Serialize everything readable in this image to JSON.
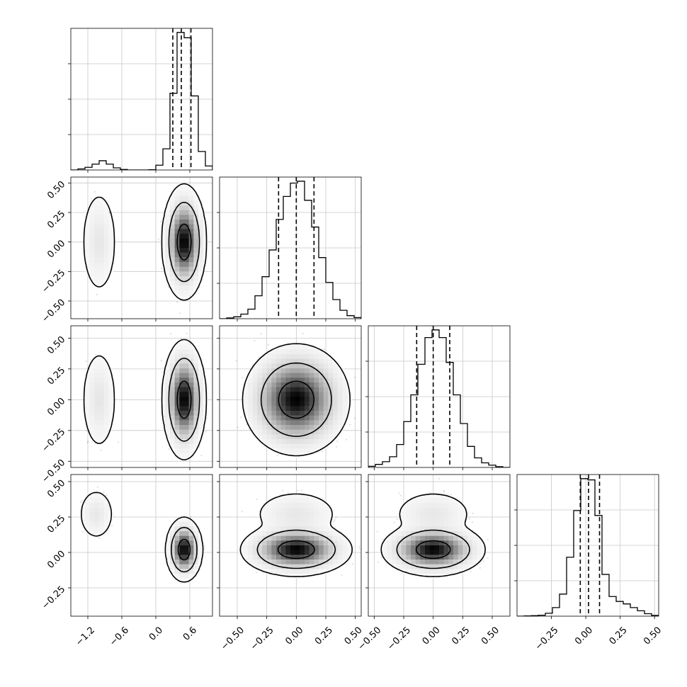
{
  "chart_data": {
    "type": "corner",
    "parameters": 4,
    "grid": true,
    "quantile_lines": "dashed",
    "panels": [
      {
        "kind": "histogram",
        "row": 0,
        "col": 0,
        "xlim": [
          -1.5,
          1.0
        ],
        "bin_edges": [
          -1.5,
          -1.375,
          -1.25,
          -1.125,
          -1.0,
          -0.875,
          -0.75,
          -0.625,
          -0.5,
          -0.375,
          -0.25,
          -0.125,
          0.0,
          0.125,
          0.25,
          0.375,
          0.5,
          0.625,
          0.75,
          0.875,
          1.0
        ],
        "counts": [
          0,
          4,
          10,
          22,
          35,
          22,
          8,
          2,
          0,
          0,
          0,
          1,
          18,
          80,
          290,
          520,
          500,
          280,
          70,
          15
        ],
        "quantiles": [
          0.3,
          0.45,
          0.62
        ]
      },
      {
        "kind": "histogram",
        "row": 1,
        "col": 1,
        "xlim": [
          -0.65,
          0.55
        ],
        "bin_edges": [
          -0.65,
          -0.59,
          -0.53,
          -0.47,
          -0.41,
          -0.35,
          -0.29,
          -0.23,
          -0.17,
          -0.11,
          -0.05,
          0.01,
          0.07,
          0.13,
          0.19,
          0.25,
          0.31,
          0.37,
          0.43,
          0.49,
          0.55
        ],
        "counts": [
          0,
          2,
          5,
          12,
          25,
          60,
          110,
          180,
          260,
          320,
          355,
          360,
          310,
          240,
          160,
          95,
          50,
          22,
          8,
          3
        ],
        "quantiles": [
          -0.15,
          0.0,
          0.15
        ]
      },
      {
        "kind": "histogram",
        "row": 2,
        "col": 2,
        "xlim": [
          -0.55,
          0.65
        ],
        "bin_edges": [
          -0.55,
          -0.49,
          -0.43,
          -0.37,
          -0.31,
          -0.25,
          -0.19,
          -0.13,
          -0.07,
          -0.01,
          0.05,
          0.11,
          0.17,
          0.23,
          0.29,
          0.35,
          0.41,
          0.47,
          0.53,
          0.59,
          0.65
        ],
        "counts": [
          3,
          8,
          15,
          28,
          60,
          120,
          190,
          270,
          340,
          360,
          340,
          275,
          190,
          115,
          55,
          25,
          12,
          6,
          2,
          0
        ],
        "quantiles": [
          -0.14,
          0.0,
          0.14
        ]
      },
      {
        "kind": "histogram",
        "row": 3,
        "col": 3,
        "xlim": [
          -0.5,
          0.53
        ],
        "bin_edges": [
          -0.5,
          -0.4485,
          -0.397,
          -0.3455,
          -0.294,
          -0.2425,
          -0.191,
          -0.1395,
          -0.088,
          -0.0365,
          0.015,
          0.0665,
          0.118,
          0.1695,
          0.221,
          0.2725,
          0.324,
          0.3755,
          0.427,
          0.4785,
          0.53
        ],
        "counts": [
          0,
          1,
          2,
          4,
          12,
          35,
          90,
          240,
          430,
          560,
          555,
          410,
          170,
          80,
          60,
          50,
          35,
          22,
          10,
          3
        ],
        "quantiles": [
          -0.04,
          0.02,
          0.1
        ]
      },
      {
        "kind": "density",
        "row": 1,
        "col": 0,
        "xlim": [
          -1.5,
          1.0
        ],
        "ylim": [
          -0.65,
          0.55
        ],
        "components": [
          {
            "weight": 0.06,
            "mean": [
              -1.0,
              0.0
            ],
            "sd": [
              0.12,
              0.17
            ]
          },
          {
            "weight": 0.94,
            "mean": [
              0.5,
              0.0
            ],
            "sd": [
              0.12,
              0.15
            ]
          }
        ],
        "samples": 1700,
        "contour_levels": [
          0.39,
          0.86,
          0.99
        ]
      },
      {
        "kind": "density",
        "row": 2,
        "col": 0,
        "xlim": [
          -1.5,
          1.0
        ],
        "ylim": [
          -0.55,
          0.6
        ],
        "components": [
          {
            "weight": 0.06,
            "mean": [
              -1.0,
              0.0
            ],
            "sd": [
              0.12,
              0.16
            ]
          },
          {
            "weight": 0.94,
            "mean": [
              0.5,
              0.0
            ],
            "sd": [
              0.12,
              0.15
            ]
          }
        ],
        "samples": 1700,
        "contour_levels": [
          0.39,
          0.86,
          0.99
        ]
      },
      {
        "kind": "density",
        "row": 3,
        "col": 0,
        "xlim": [
          -1.5,
          1.0
        ],
        "ylim": [
          -0.45,
          0.55
        ],
        "components": [
          {
            "weight": 0.06,
            "mean": [
              -1.05,
              0.27
            ],
            "sd": [
              0.12,
              0.07
            ]
          },
          {
            "weight": 0.94,
            "mean": [
              0.5,
              0.02
            ],
            "sd": [
              0.1,
              0.07
            ]
          }
        ],
        "samples": 1700,
        "contour_levels": [
          0.39,
          0.86,
          0.99
        ]
      },
      {
        "kind": "density",
        "row": 2,
        "col": 1,
        "xlim": [
          -0.65,
          0.55
        ],
        "ylim": [
          -0.55,
          0.6
        ],
        "components": [
          {
            "weight": 1.0,
            "mean": [
              0.0,
              0.0
            ],
            "sd": [
              0.15,
              0.15
            ]
          }
        ],
        "samples": 2600,
        "contour_levels": [
          0.39,
          0.86,
          0.99
        ]
      },
      {
        "kind": "density",
        "row": 3,
        "col": 1,
        "xlim": [
          -0.65,
          0.55
        ],
        "ylim": [
          -0.45,
          0.55
        ],
        "components": [
          {
            "weight": 0.94,
            "mean": [
              0.0,
              0.02
            ],
            "sd": [
              0.15,
              0.06
            ]
          },
          {
            "weight": 0.06,
            "mean": [
              0.0,
              0.27
            ],
            "sd": [
              0.15,
              0.07
            ]
          }
        ],
        "samples": 2600,
        "contour_levels": [
          0.39,
          0.86,
          0.99
        ]
      },
      {
        "kind": "density",
        "row": 3,
        "col": 2,
        "xlim": [
          -0.55,
          0.65
        ],
        "ylim": [
          -0.45,
          0.55
        ],
        "components": [
          {
            "weight": 0.94,
            "mean": [
              0.0,
              0.02
            ],
            "sd": [
              0.14,
              0.06
            ]
          },
          {
            "weight": 0.06,
            "mean": [
              0.0,
              0.27
            ],
            "sd": [
              0.14,
              0.07
            ]
          }
        ],
        "samples": 2600,
        "contour_levels": [
          0.39,
          0.86,
          0.99
        ]
      }
    ],
    "tick_labels": {
      "x_col0": [
        "−1.2",
        "−0.6",
        "0.0",
        "0.6"
      ],
      "x_col1": [
        "−0.50",
        "−0.25",
        "0.00",
        "0.25",
        "0.50"
      ],
      "x_col2": [
        "−0.50",
        "−0.25",
        "0.00",
        "0.25",
        "0.50"
      ],
      "x_col3": [
        "−0.25",
        "0.00",
        "0.25",
        "0.50"
      ],
      "y_row1": [
        "0.50",
        "0.25",
        "0.00",
        "−0.25",
        "−0.50"
      ],
      "y_row2": [
        "0.50",
        "0.25",
        "0.00",
        "−0.25",
        "−0.50"
      ],
      "y_row3": [
        "0.50",
        "0.25",
        "0.00",
        "−0.25"
      ]
    },
    "tick_values": {
      "x_col0": [
        -1.2,
        -0.6,
        0.0,
        0.6
      ],
      "x_col1": [
        -0.5,
        -0.25,
        0.0,
        0.25,
        0.5
      ],
      "x_col2": [
        -0.5,
        -0.25,
        0.0,
        0.25,
        0.5
      ],
      "x_col3": [
        -0.25,
        0.0,
        0.25,
        0.5
      ],
      "y_row1": [
        0.5,
        0.25,
        0.0,
        -0.25,
        -0.5
      ],
      "y_row2": [
        0.5,
        0.25,
        0.0,
        -0.25,
        -0.5
      ],
      "y_row3": [
        0.5,
        0.25,
        0.0,
        -0.25
      ]
    }
  }
}
